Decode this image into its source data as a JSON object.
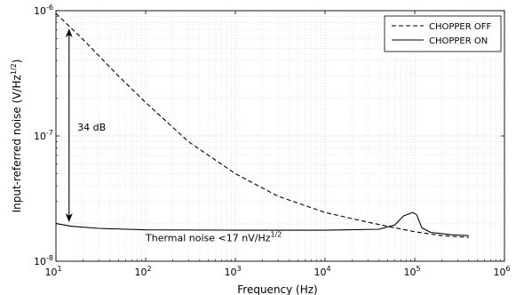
{
  "chart_data": {
    "type": "line",
    "x_scale": "log",
    "y_scale": "log",
    "xlabel": "Frequency (Hz)",
    "ylabel": "Input-referred noise (V/Hz¹ᐟ²)",
    "ylabel_parts": {
      "main": "Input-referred noise (V/Hz",
      "sup": "1/2",
      "tail": ")"
    },
    "xlim": [
      10,
      1000000
    ],
    "ylim": [
      1e-08,
      1e-06
    ],
    "grid": true,
    "legend_position": "top-right",
    "x_ticks": [
      {
        "value": 10,
        "base": "10",
        "exp": "1"
      },
      {
        "value": 100,
        "base": "10",
        "exp": "2"
      },
      {
        "value": 1000,
        "base": "10",
        "exp": "3"
      },
      {
        "value": 10000,
        "base": "10",
        "exp": "4"
      },
      {
        "value": 100000,
        "base": "10",
        "exp": "5"
      },
      {
        "value": 1000000,
        "base": "10",
        "exp": "6"
      }
    ],
    "y_ticks": [
      {
        "value": 1e-08,
        "base": "10",
        "exp": "-8"
      },
      {
        "value": 1e-07,
        "base": "10",
        "exp": "-7"
      },
      {
        "value": 1e-06,
        "base": "10",
        "exp": "-6"
      }
    ],
    "series": [
      {
        "name": "CHOPPER OFF",
        "line_style": "dashed",
        "color": "#000000",
        "points": [
          [
            10,
            9.5e-07
          ],
          [
            20,
            5.9e-07
          ],
          [
            50,
            3e-07
          ],
          [
            100,
            1.85e-07
          ],
          [
            300,
            9e-08
          ],
          [
            1000,
            5e-08
          ],
          [
            3000,
            3.3e-08
          ],
          [
            10000,
            2.45e-08
          ],
          [
            30000,
            2.05e-08
          ],
          [
            60000,
            1.85e-08
          ],
          [
            100000,
            1.72e-08
          ],
          [
            200000,
            1.6e-08
          ],
          [
            400000,
            1.55e-08
          ]
        ]
      },
      {
        "name": "CHOPPER ON",
        "line_style": "solid",
        "color": "#000000",
        "points": [
          [
            10,
            2e-08
          ],
          [
            15,
            1.9e-08
          ],
          [
            30,
            1.83e-08
          ],
          [
            100,
            1.78e-08
          ],
          [
            1000,
            1.77e-08
          ],
          [
            10000,
            1.77e-08
          ],
          [
            40000,
            1.8e-08
          ],
          [
            60000,
            1.95e-08
          ],
          [
            75000,
            2.3e-08
          ],
          [
            95000,
            2.45e-08
          ],
          [
            105000,
            2.35e-08
          ],
          [
            120000,
            1.85e-08
          ],
          [
            150000,
            1.7e-08
          ],
          [
            250000,
            1.63e-08
          ],
          [
            400000,
            1.6e-08
          ]
        ]
      }
    ],
    "annotations": [
      {
        "id": "span",
        "text": "34 dB",
        "arrow": {
          "x": 14,
          "y_top": 7.2e-07,
          "y_bottom": 2.05e-08
        },
        "text_at": {
          "x": 11.5,
          "y": 1.1e-07
        }
      },
      {
        "id": "thermal",
        "text_main": "Thermal noise <17 nV/Hz",
        "text_sup": "1/2",
        "text_at": {
          "x": 100,
          "y": 1.54e-08
        }
      }
    ]
  }
}
